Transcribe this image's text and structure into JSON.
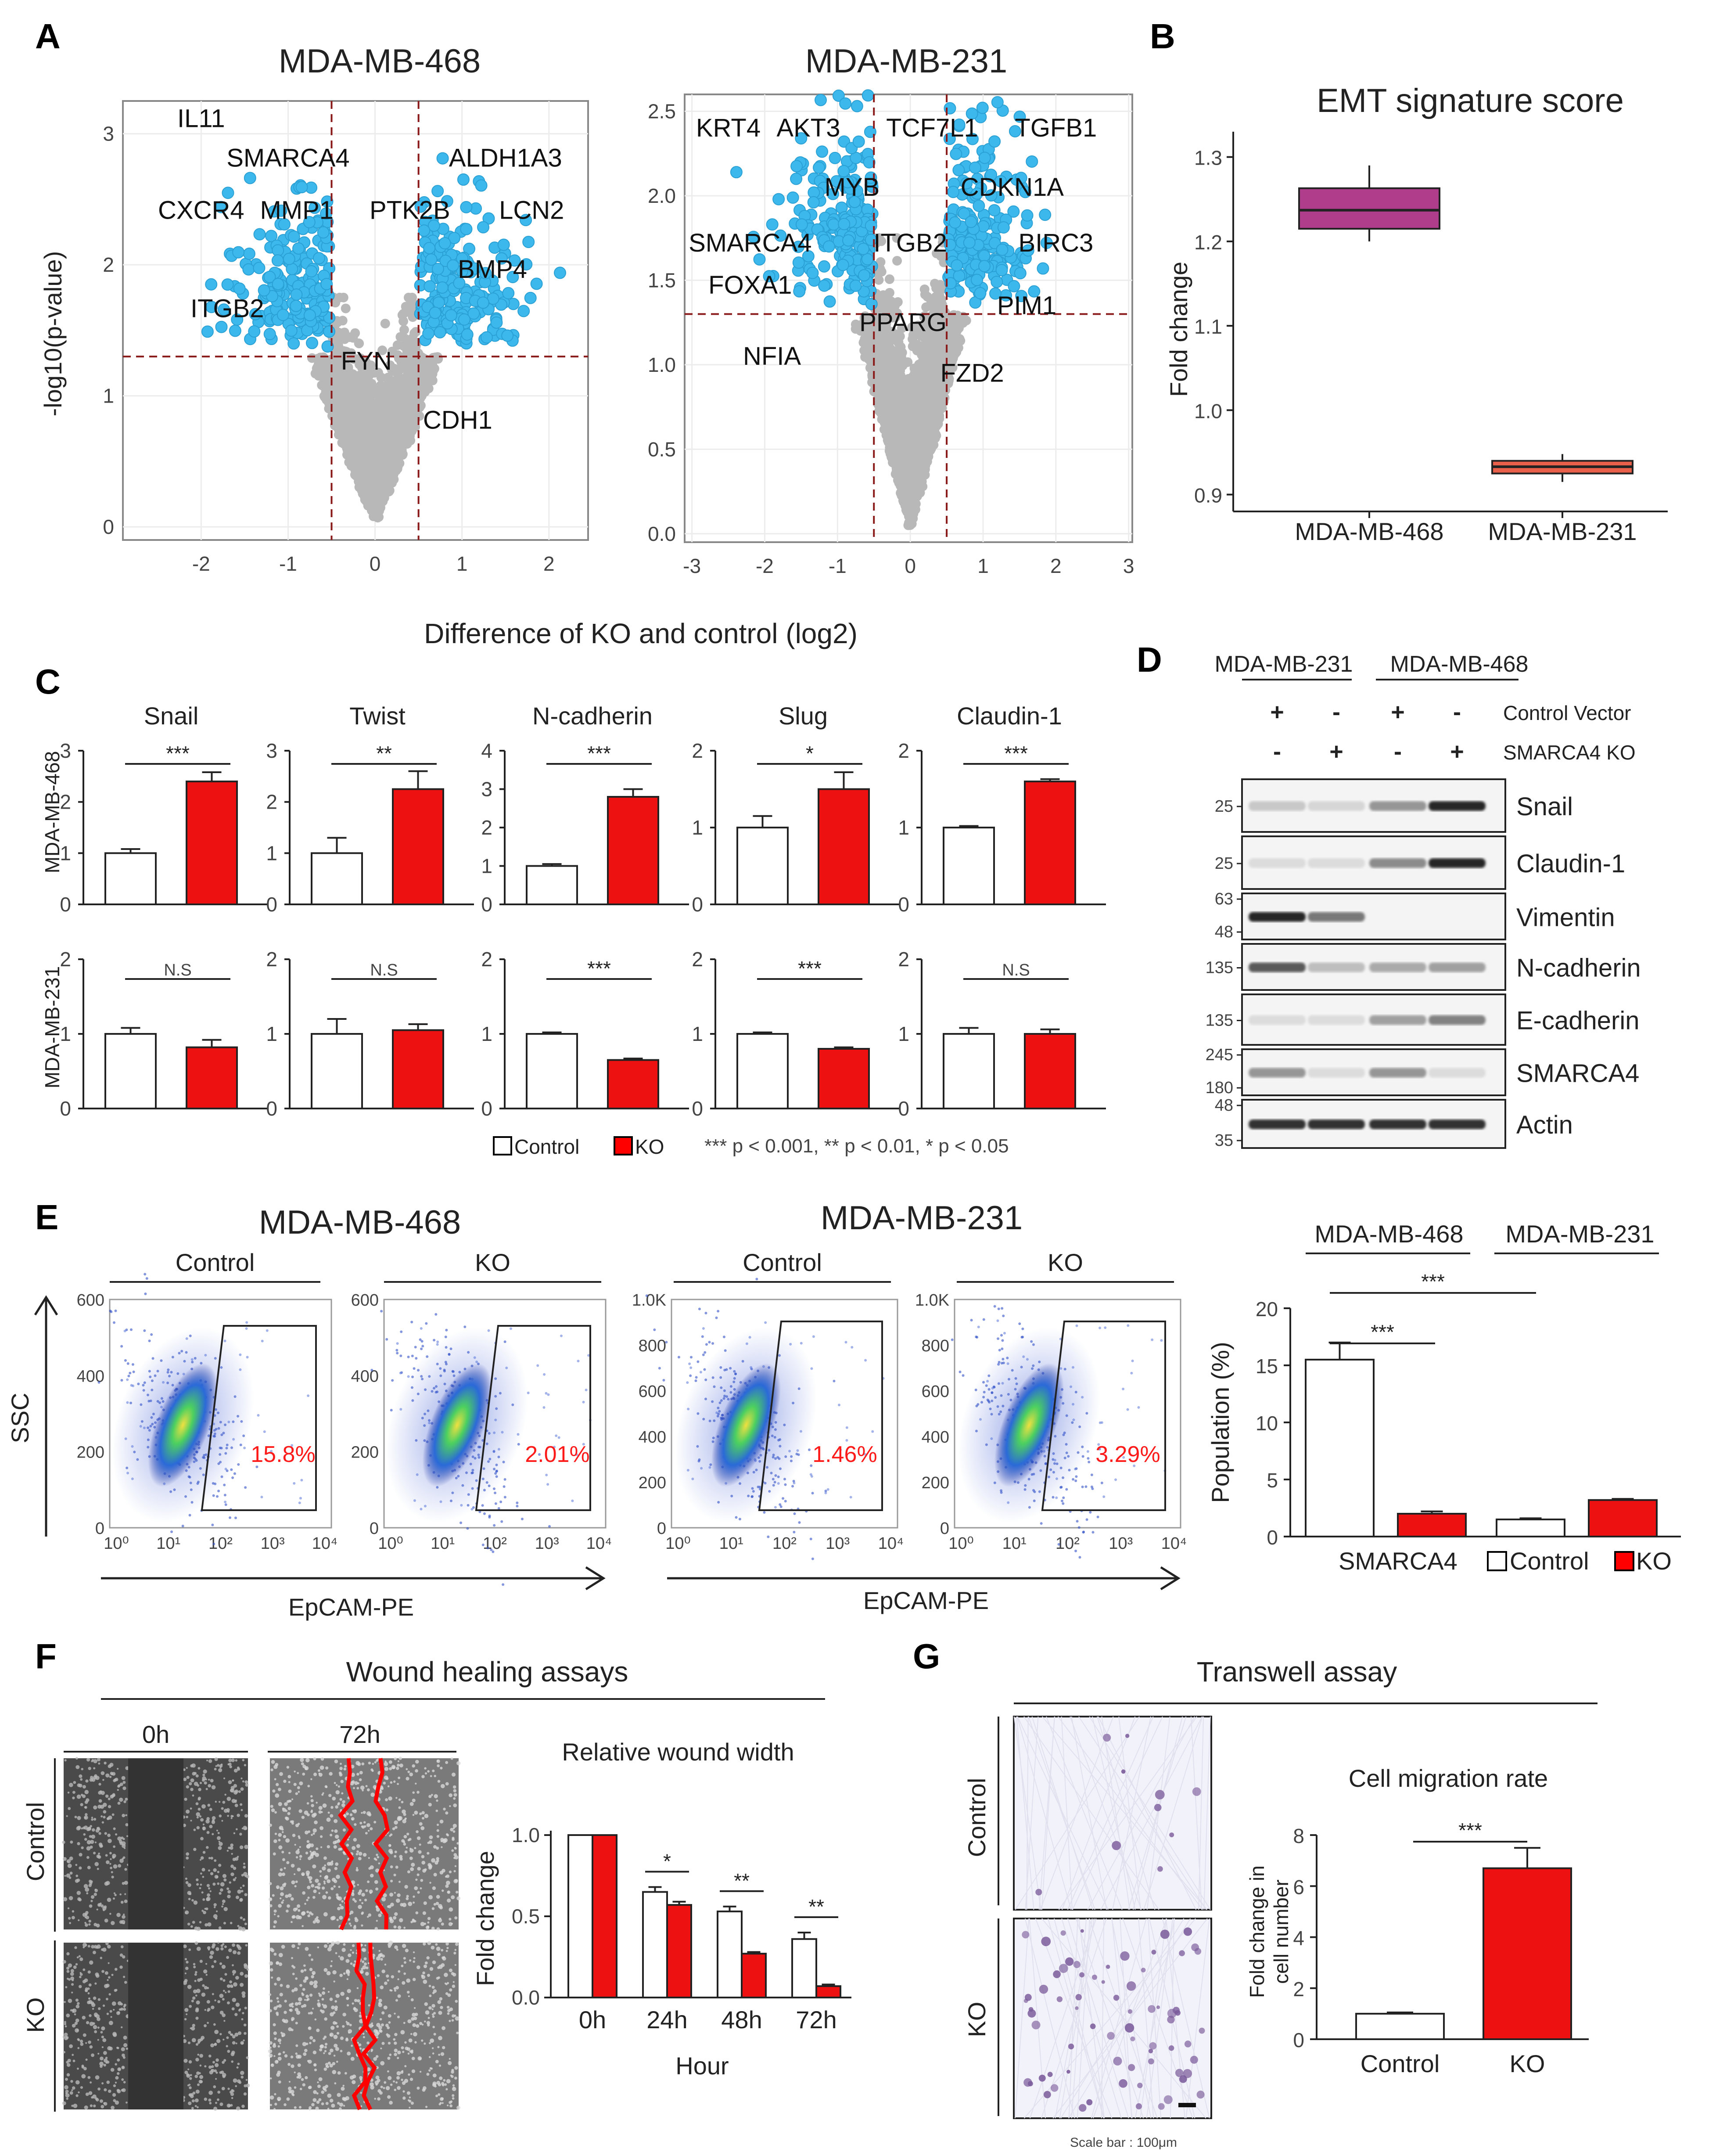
{
  "panels": {
    "A": "A",
    "B": "B",
    "C": "C",
    "D": "D",
    "E": "E",
    "F": "F",
    "G": "G"
  },
  "chart_data": [
    {
      "id": "A1",
      "type": "scatter",
      "title": "MDA-MB-468",
      "xlabel": "Difference of KO and control (log2)",
      "ylabel": "-log10(p-value)",
      "xlim": [
        -2.9,
        2.45
      ],
      "ylim": [
        -0.1,
        3.25
      ],
      "xticks": [
        "-2",
        "-1",
        "0",
        "1",
        "2"
      ],
      "yticks": [
        "0",
        "1",
        "2",
        "3"
      ],
      "thresholds": {
        "x": [
          -0.5,
          0.5
        ],
        "y": 1.3
      },
      "genes": [
        {
          "name": "IL11",
          "x": -2.0,
          "y": 3.05
        },
        {
          "name": "SMARCA4",
          "x": -1.0,
          "y": 2.75
        },
        {
          "name": "ALDH1A3",
          "x": 1.5,
          "y": 2.75
        },
        {
          "name": "CXCR4",
          "x": -2.0,
          "y": 2.35
        },
        {
          "name": "MMP1",
          "x": -0.9,
          "y": 2.35
        },
        {
          "name": "PTK2B",
          "x": 0.4,
          "y": 2.35
        },
        {
          "name": "LCN2",
          "x": 1.8,
          "y": 2.35
        },
        {
          "name": "BMP4",
          "x": 1.35,
          "y": 1.9
        },
        {
          "name": "ITGB2",
          "x": -1.7,
          "y": 1.6
        },
        {
          "name": "FYN",
          "x": -0.1,
          "y": 1.2
        },
        {
          "name": "CDH1",
          "x": 0.95,
          "y": 0.75
        }
      ]
    },
    {
      "id": "A2",
      "type": "scatter",
      "title": "MDA-MB-231",
      "xlabel": "Difference of KO and control (log2)",
      "ylabel": "-log10(p-value)",
      "xlim": [
        -3.1,
        3.05
      ],
      "ylim": [
        -0.05,
        2.6
      ],
      "xticks": [
        "-3",
        "-2",
        "-1",
        "0",
        "1",
        "2",
        "3"
      ],
      "yticks": [
        "0.0",
        "0.5",
        "1.0",
        "1.5",
        "2.0",
        "2.5"
      ],
      "thresholds": {
        "x": [
          -0.5,
          0.5
        ],
        "y": 1.3
      },
      "genes": [
        {
          "name": "KRT4",
          "x": -2.5,
          "y": 2.35
        },
        {
          "name": "AKT3",
          "x": -1.4,
          "y": 2.35
        },
        {
          "name": "TCF7L1",
          "x": 0.3,
          "y": 2.35
        },
        {
          "name": "TGFB1",
          "x": 2.0,
          "y": 2.35
        },
        {
          "name": "MYB",
          "x": -0.8,
          "y": 2.0
        },
        {
          "name": "CDKN1A",
          "x": 1.4,
          "y": 2.0
        },
        {
          "name": "SMARCA4",
          "x": -2.2,
          "y": 1.67
        },
        {
          "name": "ITGB2",
          "x": 0.0,
          "y": 1.67
        },
        {
          "name": "BIRC3",
          "x": 2.0,
          "y": 1.67
        },
        {
          "name": "FOXA1",
          "x": -2.2,
          "y": 1.42
        },
        {
          "name": "PIM1",
          "x": 1.6,
          "y": 1.3
        },
        {
          "name": "PPARG",
          "x": -0.1,
          "y": 1.2
        },
        {
          "name": "NFIA",
          "x": -1.9,
          "y": 1.0
        },
        {
          "name": "FZD2",
          "x": 0.85,
          "y": 0.9
        }
      ]
    },
    {
      "id": "B",
      "type": "box",
      "title": "EMT signature score",
      "ylabel": "Fold change",
      "ylim": [
        0.88,
        1.33
      ],
      "yticks": [
        "0.9",
        "1.0",
        "1.1",
        "1.2",
        "1.3"
      ],
      "categories": [
        "MDA-MB-468",
        "MDA-MB-231"
      ],
      "boxes": [
        {
          "min": 1.2,
          "q1": 1.215,
          "median": 1.237,
          "q3": 1.263,
          "max": 1.29,
          "color": "#b03c8c"
        },
        {
          "min": 0.915,
          "q1": 0.925,
          "median": 0.933,
          "q3": 0.94,
          "max": 0.948,
          "color": "#e8604a"
        }
      ]
    },
    {
      "id": "C",
      "type": "bar",
      "series_names": [
        "Control",
        "KO"
      ],
      "legend": {
        "control": "Control",
        "ko": "KO",
        "note": "*** p < 0.001, ** p < 0.01, * p < 0.05"
      },
      "row_labels": [
        "MDA-MB-468",
        "MDA-MB-231"
      ],
      "charts": [
        {
          "gene": "Snail",
          "row": 0,
          "ymax": 3,
          "yticks": [
            "0",
            "1",
            "2",
            "3"
          ],
          "values": [
            1.0,
            2.4
          ],
          "errors": [
            0.08,
            0.18
          ],
          "sig": "***"
        },
        {
          "gene": "Twist",
          "row": 0,
          "ymax": 3,
          "yticks": [
            "0",
            "1",
            "2",
            "3"
          ],
          "values": [
            1.0,
            2.25
          ],
          "errors": [
            0.3,
            0.35
          ],
          "sig": "**"
        },
        {
          "gene": "N-cadherin",
          "row": 0,
          "ymax": 4,
          "yticks": [
            "0",
            "1",
            "2",
            "3",
            "4"
          ],
          "values": [
            1.0,
            2.8
          ],
          "errors": [
            0.05,
            0.2
          ],
          "sig": "***"
        },
        {
          "gene": "Slug",
          "row": 0,
          "ymax": 2,
          "yticks": [
            "0",
            "1",
            "2"
          ],
          "values": [
            1.0,
            1.5
          ],
          "errors": [
            0.15,
            0.22
          ],
          "sig": "*"
        },
        {
          "gene": "Claudin-1",
          "row": 0,
          "ymax": 2,
          "yticks": [
            "0",
            "1",
            "2"
          ],
          "values": [
            1.0,
            1.6
          ],
          "errors": [
            0.02,
            0.03
          ],
          "sig": "***"
        },
        {
          "gene": "Snail",
          "row": 1,
          "ymax": 2,
          "yticks": [
            "0",
            "1",
            "2"
          ],
          "values": [
            1.0,
            0.82
          ],
          "errors": [
            0.08,
            0.1
          ],
          "sig": "N.S"
        },
        {
          "gene": "Twist",
          "row": 1,
          "ymax": 2,
          "yticks": [
            "0",
            "1",
            "2"
          ],
          "values": [
            1.0,
            1.05
          ],
          "errors": [
            0.2,
            0.08
          ],
          "sig": "N.S"
        },
        {
          "gene": "N-cadherin",
          "row": 1,
          "ymax": 2,
          "yticks": [
            "0",
            "1",
            "2"
          ],
          "values": [
            1.0,
            0.65
          ],
          "errors": [
            0.02,
            0.02
          ],
          "sig": "***"
        },
        {
          "gene": "Slug",
          "row": 1,
          "ymax": 2,
          "yticks": [
            "0",
            "1",
            "2"
          ],
          "values": [
            1.0,
            0.8
          ],
          "errors": [
            0.02,
            0.02
          ],
          "sig": "***"
        },
        {
          "gene": "Claudin-1",
          "row": 1,
          "ymax": 2,
          "yticks": [
            "0",
            "1",
            "2"
          ],
          "values": [
            1.0,
            1.0
          ],
          "errors": [
            0.08,
            0.06
          ],
          "sig": "N.S"
        }
      ]
    },
    {
      "id": "E",
      "type": "bar",
      "ylabel": "Population (%)",
      "ylim": [
        0,
        20
      ],
      "yticks": [
        "0",
        "5",
        "10",
        "15",
        "20"
      ],
      "groups": [
        "MDA-MB-468",
        "MDA-MB-231"
      ],
      "values": [
        15.5,
        2.0,
        1.5,
        3.2
      ],
      "errors": [
        1.5,
        0.2,
        0.1,
        0.1
      ],
      "series": [
        "Control",
        "KO"
      ],
      "legend_prefix": "SMARCA4",
      "significance": [
        "***",
        "***"
      ]
    },
    {
      "id": "F",
      "type": "bar",
      "title": "Relative wound width",
      "xlabel": "Hour",
      "ylabel": "Fold change",
      "ylim": [
        0,
        1.0
      ],
      "yticks": [
        "0.0",
        "0.5",
        "1.0"
      ],
      "categories": [
        "0h",
        "24h",
        "48h",
        "72h"
      ],
      "series": [
        {
          "name": "Control",
          "values": [
            1.0,
            0.65,
            0.53,
            0.36
          ],
          "errors": [
            0,
            0.03,
            0.03,
            0.04
          ]
        },
        {
          "name": "KO",
          "values": [
            1.0,
            0.57,
            0.27,
            0.07
          ],
          "errors": [
            0,
            0.02,
            0.01,
            0.01
          ]
        }
      ],
      "sig": [
        "",
        "*",
        "**",
        "**"
      ]
    },
    {
      "id": "G",
      "type": "bar",
      "title": "Cell migration rate",
      "ylabel": "Fold change in cell number",
      "ylim": [
        0,
        8
      ],
      "yticks": [
        "0",
        "2",
        "4",
        "6",
        "8"
      ],
      "categories": [
        "Control",
        "KO"
      ],
      "values": [
        1.0,
        6.7
      ],
      "errors": [
        0.05,
        0.8
      ],
      "sig": "***"
    }
  ],
  "panelA": {
    "title_left": "MDA-MB-468",
    "title_right": "MDA-MB-231",
    "ylabel": "-log10(p-value)",
    "xlabel": "Difference of KO and control (log2)"
  },
  "panelB": {
    "title": "EMT signature score",
    "ylabel": "Fold change",
    "cat1": "MDA-MB-468",
    "cat2": "MDA-MB-231"
  },
  "panelC": {
    "row1": "MDA-MB-468",
    "row2": "MDA-MB-231",
    "legend_control": "Control",
    "legend_ko": "KO",
    "note": "*** p < 0.001, ** p < 0.01, * p < 0.05"
  },
  "panelD": {
    "cell_lines": [
      "MDA-MB-231",
      "MDA-MB-468"
    ],
    "row_labels": [
      "Control Vector",
      "SMARCA4 KO"
    ],
    "signs": [
      [
        "+",
        "-",
        "+",
        "-"
      ],
      [
        "-",
        "+",
        "-",
        "+"
      ]
    ],
    "bands": [
      {
        "label": "Snail",
        "markers": [
          "25"
        ],
        "intensity": [
          0.15,
          0.08,
          0.4,
          0.95
        ]
      },
      {
        "label": "Claudin-1",
        "markers": [
          "25"
        ],
        "intensity": [
          0.05,
          0.05,
          0.45,
          0.95
        ]
      },
      {
        "label": "Vimentin",
        "markers": [
          "63",
          "48"
        ],
        "intensity": [
          0.95,
          0.55,
          0,
          0
        ]
      },
      {
        "label": "N-cadherin",
        "markers": [
          "135"
        ],
        "intensity": [
          0.7,
          0.2,
          0.3,
          0.35
        ]
      },
      {
        "label": "E-cadherin",
        "markers": [
          "135"
        ],
        "intensity": [
          0.05,
          0.05,
          0.35,
          0.5
        ]
      },
      {
        "label": "SMARCA4",
        "markers": [
          "245",
          "180"
        ],
        "intensity": [
          0.4,
          0.05,
          0.4,
          0.05
        ]
      },
      {
        "label": "Actin",
        "markers": [
          "48",
          "35"
        ],
        "intensity": [
          0.9,
          0.9,
          0.9,
          0.9
        ]
      }
    ]
  },
  "panelE": {
    "title_468": "MDA-MB-468",
    "title_231": "MDA-MB-231",
    "flows": [
      {
        "label": "Control",
        "pct": "15.8%",
        "yticks": [
          "0",
          "200",
          "400",
          "600"
        ],
        "cluster": 0.5
      },
      {
        "label": "KO",
        "pct": "2.01%",
        "yticks": [
          "0",
          "200",
          "400",
          "600"
        ],
        "cluster": 0.5
      },
      {
        "label": "Control",
        "pct": "1.46%",
        "yticks": [
          "0",
          "200",
          "400",
          "600",
          "800",
          "1.0K"
        ],
        "cluster": 0.4
      },
      {
        "label": "KO",
        "pct": "3.29%",
        "yticks": [
          "0",
          "200",
          "400",
          "600",
          "800",
          "1.0K"
        ],
        "cluster": 0.5
      }
    ],
    "xticks": [
      "10⁰",
      "10¹",
      "10²",
      "10³",
      "10⁴"
    ],
    "ssc": "SSC",
    "epcam": "EpCAM-PE",
    "bar_title_468": "MDA-MB-468",
    "bar_title_231": "MDA-MB-231",
    "legend_prefix": "SMARCA4",
    "legend_control": "Control",
    "legend_ko": "KO"
  },
  "panelF": {
    "title": "Wound healing assays",
    "col_0h": "0h",
    "col_72h": "72h",
    "row_control": "Control",
    "row_ko": "KO",
    "chart_title": "Relative wound width"
  },
  "panelG": {
    "title": "Transwell assay",
    "row_control": "Control",
    "row_ko": "KO",
    "scale_bar": "Scale bar : 100μm",
    "chart_title": "Cell migration rate",
    "ylabel_line1": "Fold change in",
    "ylabel_line2": "cell number"
  }
}
